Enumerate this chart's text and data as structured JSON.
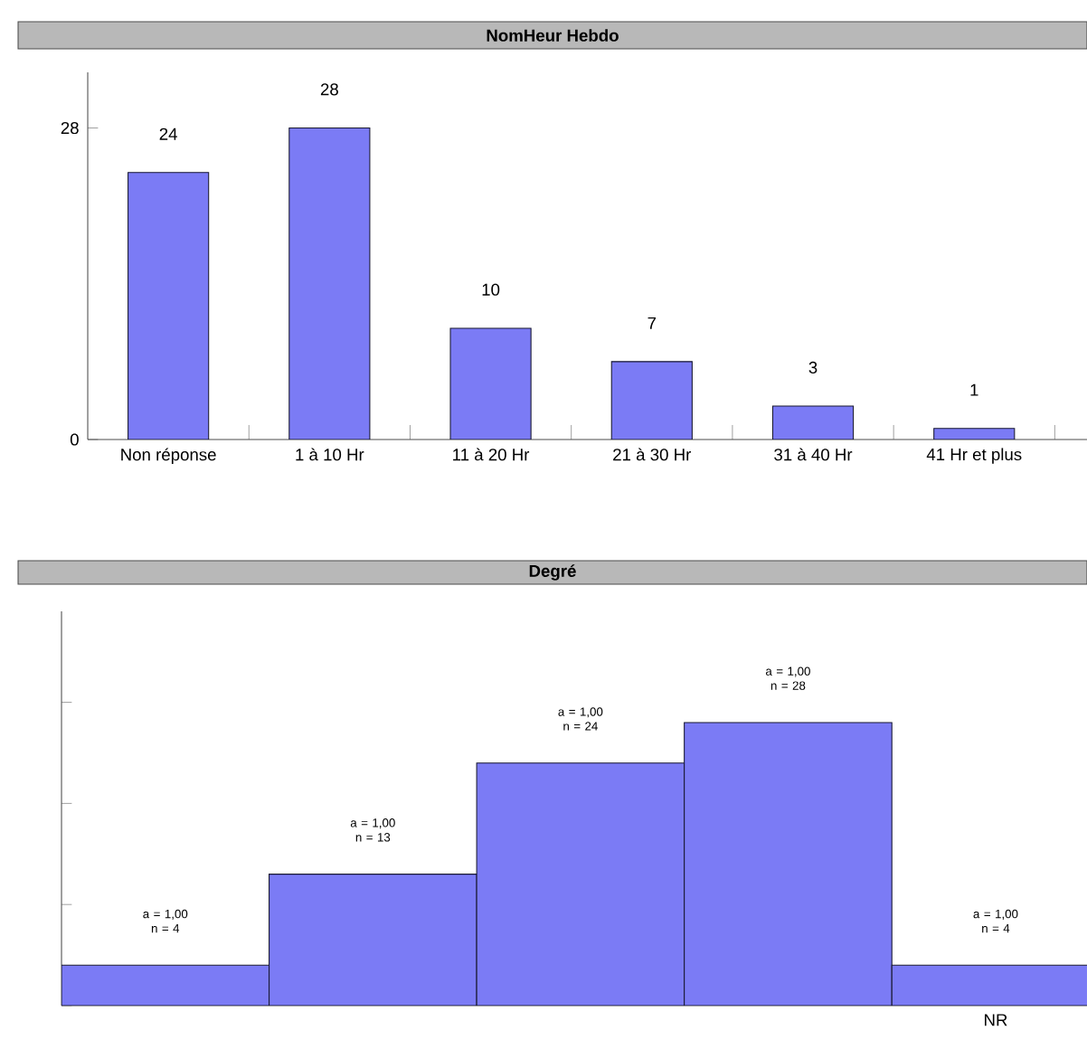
{
  "chart_data": [
    {
      "type": "bar",
      "title": "NomHeur Hebdo",
      "categories": [
        "Non réponse",
        "1 à 10 Hr",
        "11 à 20 Hr",
        "21 à 30 Hr",
        "31 à 40 Hr",
        "41 Hr et plus"
      ],
      "values": [
        24,
        28,
        10,
        7,
        3,
        1
      ],
      "color": "#7b7bf5",
      "ylim": [
        0,
        33
      ],
      "yticks": [
        0,
        28
      ],
      "data_labels": true
    },
    {
      "type": "bar",
      "title": "Degré",
      "categories": [
        null,
        null,
        null,
        null,
        "NR"
      ],
      "values": [
        4,
        13,
        24,
        28,
        4
      ],
      "color": "#7b7bf5",
      "ylim": [
        0,
        39
      ],
      "tick_labels": "x",
      "value_labels": [
        "a = 1,00 n = 4",
        "a = 1,00 n = 13",
        "a = 1,00 n = 24",
        "a = 1,00 n = 28",
        "a = 1,00 n = 4"
      ]
    }
  ]
}
